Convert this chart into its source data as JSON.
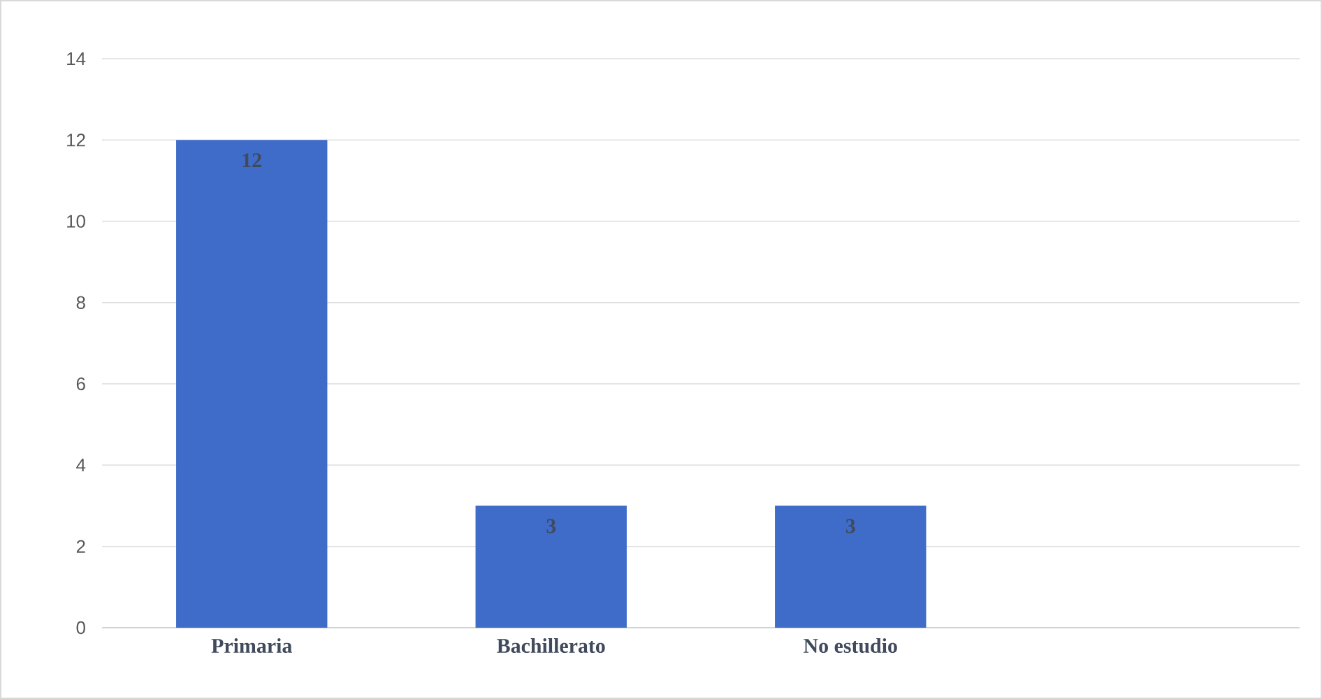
{
  "chart_data": {
    "type": "bar",
    "categories": [
      "Primaria",
      "Bachillerato",
      "No estudio",
      null
    ],
    "values": [
      12,
      3,
      3,
      null
    ],
    "color": "#3f6cc8",
    "ylim": [
      0,
      14
    ],
    "yticks": [
      0,
      2,
      4,
      6,
      8,
      10,
      12,
      14
    ],
    "grid": "y",
    "data_labels": true
  }
}
